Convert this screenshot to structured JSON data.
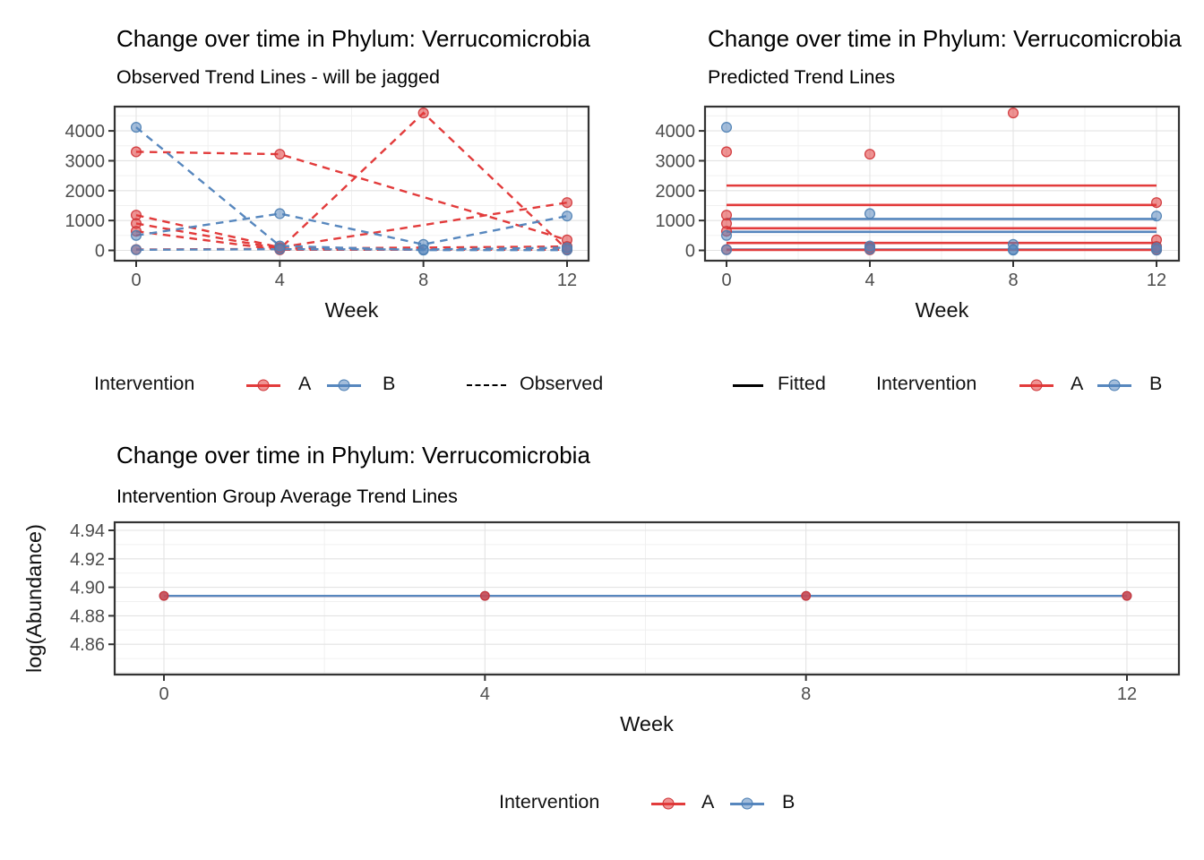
{
  "colors": {
    "red": "#E23B3B",
    "red_stroke": "#CF3336",
    "blue": "#5787BE",
    "blue_stroke": "#4B7EB3",
    "black": "#000000",
    "axis_text": "#4D4D4D",
    "axis_title": "#111111",
    "grid_major": "#E3E3E3",
    "grid_minor": "#F0F0F0",
    "panel_border": "#333333",
    "tick_mark": "#333333"
  },
  "figures": {
    "observed": {
      "title": "Change over time in Phylum: Verrucomicrobia",
      "subtitle": "Observed Trend Lines - will be jagged",
      "legend": {
        "title": "Intervention",
        "a_label": "A",
        "b_label": "B",
        "line_label": "Observed"
      }
    },
    "predicted": {
      "title": "Change over time in Phylum: Verrucomicrobia",
      "subtitle": "Predicted Trend Lines",
      "legend": {
        "title": "Intervention",
        "a_label": "A",
        "b_label": "B",
        "line_label": "Fitted"
      }
    },
    "average": {
      "title": "Change over time in Phylum: Verrucomicrobia",
      "subtitle": "Intervention Group Average Trend Lines",
      "legend": {
        "title": "Intervention",
        "a_label": "A",
        "b_label": "B"
      }
    }
  },
  "chart_data": [
    {
      "id": "observed",
      "type": "line",
      "title": "Change over time in Phylum: Verrucomicrobia",
      "subtitle": "Observed Trend Lines - will be jagged",
      "xlabel": "Week",
      "ylabel": "",
      "line_style": "dashed",
      "x_range": [
        0,
        12
      ],
      "xlim": [
        -0.6,
        12.6
      ],
      "ylim": [
        -350,
        4800
      ],
      "x_ticks": [
        0,
        4,
        8,
        12
      ],
      "x_tick_labels": [
        "0",
        "4",
        "8",
        "12"
      ],
      "x_minor": [
        2,
        6,
        10
      ],
      "y_ticks": [
        0,
        1000,
        2000,
        3000,
        4000
      ],
      "y_tick_labels": [
        "0",
        "1000",
        "2000",
        "3000",
        "4000"
      ],
      "y_grid_major": [
        0,
        1000,
        2000,
        3000,
        4000
      ],
      "y_minor": [
        500,
        1500,
        2500,
        3500,
        4500
      ],
      "legend_position": "bottom",
      "series": [
        {
          "group": "A",
          "points": [
            [
              0,
              3300
            ],
            [
              4,
              3220
            ],
            [
              12,
              350
            ]
          ]
        },
        {
          "group": "A",
          "points": [
            [
              0,
              30
            ],
            [
              4,
              50
            ],
            [
              8,
              4600
            ],
            [
              12,
              30
            ]
          ]
        },
        {
          "group": "A",
          "points": [
            [
              0,
              1180
            ],
            [
              4,
              100
            ],
            [
              12,
              1600
            ]
          ]
        },
        {
          "group": "A",
          "points": [
            [
              0,
              900
            ],
            [
              4,
              60
            ],
            [
              12,
              130
            ]
          ]
        },
        {
          "group": "A",
          "points": [
            [
              0,
              640
            ],
            [
              4,
              20
            ],
            [
              12,
              20
            ]
          ]
        },
        {
          "group": "B",
          "points": [
            [
              0,
              4120
            ],
            [
              4,
              150
            ],
            [
              8,
              10
            ],
            [
              12,
              10
            ]
          ]
        },
        {
          "group": "B",
          "points": [
            [
              0,
              500
            ],
            [
              4,
              1230
            ],
            [
              8,
              200
            ],
            [
              12,
              1150
            ]
          ]
        },
        {
          "group": "B",
          "points": [
            [
              0,
              20
            ],
            [
              4,
              40
            ],
            [
              8,
              30
            ],
            [
              12,
              90
            ]
          ]
        }
      ]
    },
    {
      "id": "predicted",
      "type": "scatter",
      "title": "Change over time in Phylum: Verrucomicrobia",
      "subtitle": "Predicted Trend Lines",
      "xlabel": "Week",
      "ylabel": "",
      "x_range": [
        0,
        12
      ],
      "xlim": [
        -0.6,
        12.6
      ],
      "ylim": [
        -350,
        4800
      ],
      "x_ticks": [
        0,
        4,
        8,
        12
      ],
      "x_tick_labels": [
        "0",
        "4",
        "8",
        "12"
      ],
      "x_minor": [
        2,
        6,
        10
      ],
      "y_ticks": [
        0,
        1000,
        2000,
        3000,
        4000
      ],
      "y_tick_labels": [
        "0",
        "1000",
        "2000",
        "3000",
        "4000"
      ],
      "y_grid_major": [
        0,
        1000,
        2000,
        3000,
        4000
      ],
      "y_minor": [
        500,
        1500,
        2500,
        3500,
        4500
      ],
      "legend_position": "bottom",
      "fitted_lines": [
        {
          "group": "A",
          "value": 2170
        },
        {
          "group": "A",
          "value": 1520
        },
        {
          "group": "B",
          "value": 1050
        },
        {
          "group": "A",
          "value": 740
        },
        {
          "group": "B",
          "value": 620
        },
        {
          "group": "A",
          "value": 250
        },
        {
          "group": "B",
          "value": 30
        },
        {
          "group": "A",
          "value": 15
        }
      ],
      "points": [
        [
          0,
          3300,
          "A"
        ],
        [
          4,
          3220,
          "A"
        ],
        [
          12,
          350,
          "A"
        ],
        [
          0,
          30,
          "A"
        ],
        [
          4,
          50,
          "A"
        ],
        [
          8,
          4600,
          "A"
        ],
        [
          12,
          30,
          "A"
        ],
        [
          0,
          1180,
          "A"
        ],
        [
          4,
          100,
          "A"
        ],
        [
          12,
          1600,
          "A"
        ],
        [
          0,
          900,
          "A"
        ],
        [
          4,
          60,
          "A"
        ],
        [
          12,
          130,
          "A"
        ],
        [
          0,
          640,
          "A"
        ],
        [
          4,
          20,
          "A"
        ],
        [
          12,
          20,
          "A"
        ],
        [
          0,
          4120,
          "B"
        ],
        [
          4,
          150,
          "B"
        ],
        [
          8,
          10,
          "B"
        ],
        [
          12,
          10,
          "B"
        ],
        [
          0,
          500,
          "B"
        ],
        [
          4,
          1230,
          "B"
        ],
        [
          8,
          200,
          "B"
        ],
        [
          12,
          1150,
          "B"
        ],
        [
          0,
          20,
          "B"
        ],
        [
          4,
          40,
          "B"
        ],
        [
          8,
          30,
          "B"
        ],
        [
          12,
          90,
          "B"
        ]
      ]
    },
    {
      "id": "average",
      "type": "line",
      "title": "Change over time in Phylum: Verrucomicrobia",
      "subtitle": "Intervention Group Average Trend Lines",
      "xlabel": "Week",
      "ylabel": "log(Abundance)",
      "line_style": "solid",
      "x_range": [
        0,
        12
      ],
      "xlim": [
        -0.6,
        12.6
      ],
      "ylim": [
        4.839,
        4.946
      ],
      "x_ticks": [
        0,
        4,
        8,
        12
      ],
      "x_tick_labels": [
        "0",
        "4",
        "8",
        "12"
      ],
      "x_minor": [
        2,
        6,
        10
      ],
      "y_ticks": [
        4.86,
        4.88,
        4.9,
        4.92,
        4.94
      ],
      "y_tick_labels": [
        "4.86",
        "4.88",
        "4.90",
        "4.92",
        "4.94"
      ],
      "y_grid_major": [
        4.84,
        4.86,
        4.88,
        4.9,
        4.92,
        4.94
      ],
      "y_minor": [
        4.85,
        4.87,
        4.89,
        4.91,
        4.93,
        4.95
      ],
      "legend_position": "bottom",
      "series": [
        {
          "group": "A",
          "points": [
            [
              0,
              4.894
            ],
            [
              4,
              4.894
            ],
            [
              8,
              4.894
            ],
            [
              12,
              4.894
            ]
          ]
        },
        {
          "group": "B",
          "points": [
            [
              0,
              4.894
            ],
            [
              4,
              4.894
            ],
            [
              8,
              4.894
            ],
            [
              12,
              4.894
            ]
          ]
        }
      ]
    }
  ]
}
